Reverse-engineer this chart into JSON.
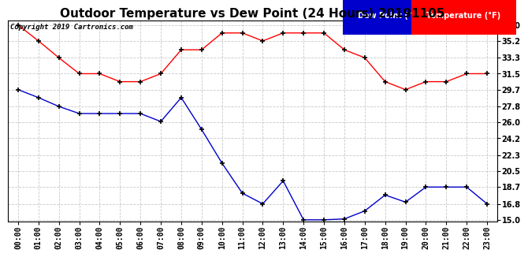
{
  "title": "Outdoor Temperature vs Dew Point (24 Hours) 20191105",
  "copyright": "Copyright 2019 Cartronics.com",
  "hours": [
    "00:00",
    "01:00",
    "02:00",
    "03:00",
    "04:00",
    "05:00",
    "06:00",
    "07:00",
    "08:00",
    "09:00",
    "10:00",
    "11:00",
    "12:00",
    "13:00",
    "14:00",
    "15:00",
    "16:00",
    "17:00",
    "18:00",
    "19:00",
    "20:00",
    "21:00",
    "22:00",
    "23:00"
  ],
  "temperature": [
    37.0,
    35.2,
    33.3,
    31.5,
    31.5,
    30.6,
    30.6,
    31.5,
    34.2,
    34.2,
    36.1,
    36.1,
    35.2,
    36.1,
    36.1,
    36.1,
    34.2,
    33.3,
    30.6,
    29.7,
    30.6,
    30.6,
    31.5,
    31.5
  ],
  "dew_point": [
    29.7,
    28.8,
    27.8,
    27.0,
    27.0,
    27.0,
    27.0,
    26.1,
    28.8,
    25.2,
    21.4,
    18.0,
    16.8,
    19.4,
    15.0,
    15.0,
    15.1,
    16.0,
    17.8,
    17.0,
    18.7,
    18.7,
    18.7,
    16.8
  ],
  "temp_color": "#ff0000",
  "dew_color": "#0000cc",
  "bg_color": "#ffffff",
  "grid_color": "#bbbbbb",
  "ylim_min": 15.0,
  "ylim_max": 37.0,
  "yticks": [
    15.0,
    16.8,
    18.7,
    20.5,
    22.3,
    24.2,
    26.0,
    27.8,
    29.7,
    31.5,
    33.3,
    35.2,
    37.0
  ],
  "legend_dew_label": "Dew Point (°F)",
  "legend_temp_label": "Temperature (°F)",
  "legend_dew_bg": "#0000cc",
  "legend_temp_bg": "#ff0000",
  "title_fontsize": 11,
  "axis_fontsize": 7,
  "marker": "+",
  "markersize": 5,
  "markeredgewidth": 1.2,
  "linewidth": 1.0
}
